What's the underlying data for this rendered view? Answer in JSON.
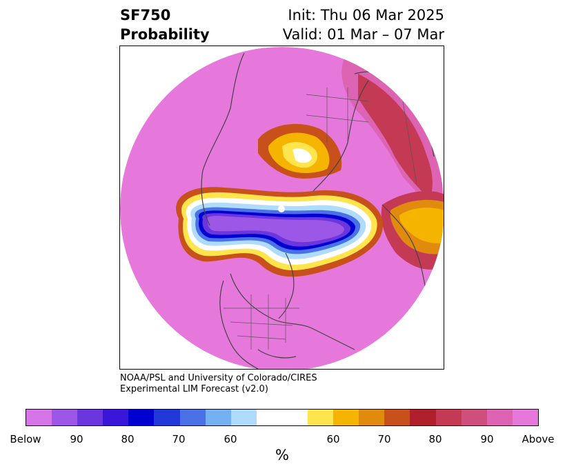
{
  "title": {
    "line1_left": "SF750",
    "line2_left": "Probability",
    "line1_right": "Init: Thu 06 Mar 2025",
    "line2_right": "Valid: 01 Mar – 07 Mar"
  },
  "credit": {
    "line1": "NOAA/PSL and University of Colorado/CIRES",
    "line2": "Experimental LIM Forecast (v2.0)"
  },
  "colorbar": {
    "colors": [
      "#d675e8",
      "#9d57e6",
      "#6b36de",
      "#3a16d8",
      "#0000d0",
      "#2338d9",
      "#4a72e6",
      "#74b1f2",
      "#afdcfb",
      "#ffffff",
      "#ffffff",
      "#ffe44d",
      "#f4b400",
      "#e08a0e",
      "#c8501a",
      "#b0202a",
      "#c43a55",
      "#cf4f7c",
      "#dc64b3",
      "#e678dc"
    ],
    "ticks": [
      "Below",
      "90",
      "80",
      "70",
      "60",
      "60",
      "70",
      "80",
      "90",
      "Above"
    ],
    "unit": "%"
  },
  "map": {
    "projection": "north-polar-stereographic",
    "background_color": "#e678dc",
    "below_color": "#8b45e0",
    "above_color": "#f4b400",
    "coastline_color": "#444444"
  }
}
